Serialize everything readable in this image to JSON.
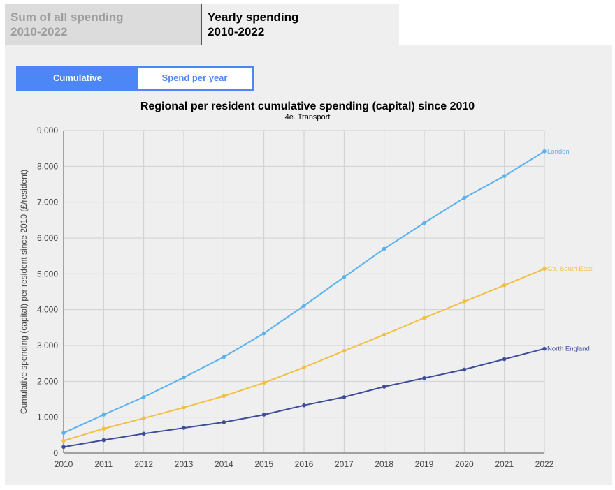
{
  "tabs": [
    {
      "line1": "Sum of all spending",
      "line2": "2010-2022"
    },
    {
      "line1": "Yearly spending",
      "line2": "2010-2022"
    }
  ],
  "toggle": {
    "cumulative": "Cumulative",
    "per_year": "Spend per year"
  },
  "colors": {
    "accent": "#4d86f5",
    "london": "#5ab2ee",
    "south_east": "#f0c040",
    "north": "#3d4d9a"
  },
  "chart_data": {
    "type": "line",
    "title": "Regional per resident cumulative spending (capital) since 2010",
    "subtitle": "4e. Transport",
    "xlabel": "",
    "ylabel": "Cumulative spending (capital) per resident since 2010 (£/resident)",
    "x": [
      "2010",
      "2011",
      "2012",
      "2013",
      "2014",
      "2015",
      "2016",
      "2017",
      "2018",
      "2019",
      "2020",
      "2021",
      "2022"
    ],
    "ylim": [
      0,
      9000
    ],
    "yticks": [
      0,
      1000,
      2000,
      3000,
      4000,
      5000,
      6000,
      7000,
      8000,
      9000
    ],
    "ytick_labels": [
      "0",
      "1,000",
      "2,000",
      "3,000",
      "4,000",
      "5,000",
      "6,000",
      "7,000",
      "8,000",
      "9,000"
    ],
    "grid": true,
    "legend": "inline-right",
    "series": [
      {
        "name": "London",
        "color": "#5ab2ee",
        "values": [
          560,
          1070,
          1560,
          2110,
          2680,
          3340,
          4110,
          4910,
          5700,
          6420,
          7120,
          7730,
          8420
        ]
      },
      {
        "name": "Gtr. South East",
        "color": "#f0c040",
        "values": [
          340,
          680,
          970,
          1270,
          1590,
          1960,
          2390,
          2850,
          3300,
          3770,
          4230,
          4680,
          5140
        ]
      },
      {
        "name": "North England",
        "color": "#3d4d9a",
        "values": [
          170,
          360,
          540,
          700,
          860,
          1070,
          1330,
          1560,
          1850,
          2090,
          2330,
          2620,
          2910
        ]
      }
    ]
  }
}
